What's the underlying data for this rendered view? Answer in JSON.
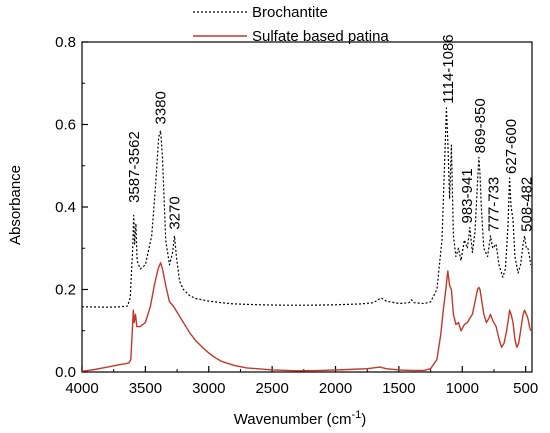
{
  "chart_data": {
    "type": "line",
    "xlabel_main": "Wavenumber (cm",
    "xlabel_sup": "-1",
    "xlabel_end": ")",
    "ylabel": "Absorbance",
    "xlim": [
      4000,
      450
    ],
    "ylim": [
      0.0,
      0.8
    ],
    "xticks": [
      4000,
      3500,
      3000,
      2500,
      2000,
      1500,
      1000,
      500
    ],
    "yticks": [
      0.0,
      0.2,
      0.4,
      0.6,
      0.8
    ],
    "ytick_labels": [
      "0.0",
      "0.2",
      "0.4",
      "0.6",
      "0.8"
    ],
    "legend": {
      "position": "top-center"
    },
    "series": [
      {
        "name": "Brochantite",
        "color": "#000000",
        "style": "dotted",
        "points": [
          [
            4000,
            0.158
          ],
          [
            3800,
            0.157
          ],
          [
            3700,
            0.158
          ],
          [
            3640,
            0.16
          ],
          [
            3620,
            0.18
          ],
          [
            3600,
            0.3
          ],
          [
            3592,
            0.38
          ],
          [
            3585,
            0.31
          ],
          [
            3575,
            0.36
          ],
          [
            3565,
            0.27
          ],
          [
            3540,
            0.25
          ],
          [
            3500,
            0.26
          ],
          [
            3450,
            0.33
          ],
          [
            3420,
            0.45
          ],
          [
            3395,
            0.57
          ],
          [
            3380,
            0.585
          ],
          [
            3365,
            0.52
          ],
          [
            3340,
            0.32
          ],
          [
            3310,
            0.26
          ],
          [
            3285,
            0.29
          ],
          [
            3270,
            0.33
          ],
          [
            3255,
            0.28
          ],
          [
            3230,
            0.22
          ],
          [
            3200,
            0.2
          ],
          [
            3150,
            0.185
          ],
          [
            3100,
            0.178
          ],
          [
            3000,
            0.172
          ],
          [
            2900,
            0.168
          ],
          [
            2800,
            0.165
          ],
          [
            2600,
            0.163
          ],
          [
            2400,
            0.162
          ],
          [
            2200,
            0.162
          ],
          [
            2000,
            0.163
          ],
          [
            1800,
            0.165
          ],
          [
            1700,
            0.168
          ],
          [
            1640,
            0.18
          ],
          [
            1600,
            0.172
          ],
          [
            1500,
            0.166
          ],
          [
            1420,
            0.168
          ],
          [
            1400,
            0.175
          ],
          [
            1380,
            0.168
          ],
          [
            1300,
            0.166
          ],
          [
            1250,
            0.17
          ],
          [
            1200,
            0.2
          ],
          [
            1160,
            0.32
          ],
          [
            1140,
            0.5
          ],
          [
            1125,
            0.64
          ],
          [
            1114,
            0.56
          ],
          [
            1100,
            0.42
          ],
          [
            1086,
            0.55
          ],
          [
            1070,
            0.33
          ],
          [
            1050,
            0.28
          ],
          [
            1030,
            0.3
          ],
          [
            1010,
            0.27
          ],
          [
            983,
            0.32
          ],
          [
            960,
            0.3
          ],
          [
            941,
            0.35
          ],
          [
            920,
            0.29
          ],
          [
            900,
            0.34
          ],
          [
            880,
            0.46
          ],
          [
            869,
            0.52
          ],
          [
            860,
            0.48
          ],
          [
            850,
            0.4
          ],
          [
            830,
            0.3
          ],
          [
            800,
            0.28
          ],
          [
            777,
            0.33
          ],
          [
            760,
            0.3
          ],
          [
            733,
            0.31
          ],
          [
            710,
            0.26
          ],
          [
            680,
            0.23
          ],
          [
            660,
            0.25
          ],
          [
            640,
            0.35
          ],
          [
            627,
            0.47
          ],
          [
            615,
            0.4
          ],
          [
            600,
            0.37
          ],
          [
            585,
            0.28
          ],
          [
            560,
            0.24
          ],
          [
            540,
            0.26
          ],
          [
            520,
            0.31
          ],
          [
            508,
            0.33
          ],
          [
            495,
            0.3
          ],
          [
            482,
            0.3
          ],
          [
            470,
            0.28
          ],
          [
            460,
            0.26
          ]
        ]
      },
      {
        "name": "Sulfate based patina",
        "color": "#c0392b",
        "style": "solid",
        "points": [
          [
            4000,
            0.002
          ],
          [
            3950,
            0.004
          ],
          [
            3900,
            0.006
          ],
          [
            3850,
            0.009
          ],
          [
            3800,
            0.012
          ],
          [
            3750,
            0.015
          ],
          [
            3700,
            0.018
          ],
          [
            3660,
            0.02
          ],
          [
            3630,
            0.022
          ],
          [
            3615,
            0.03
          ],
          [
            3605,
            0.09
          ],
          [
            3595,
            0.15
          ],
          [
            3588,
            0.12
          ],
          [
            3578,
            0.14
          ],
          [
            3568,
            0.11
          ],
          [
            3540,
            0.11
          ],
          [
            3500,
            0.12
          ],
          [
            3460,
            0.16
          ],
          [
            3430,
            0.21
          ],
          [
            3400,
            0.25
          ],
          [
            3380,
            0.265
          ],
          [
            3365,
            0.25
          ],
          [
            3340,
            0.21
          ],
          [
            3310,
            0.17
          ],
          [
            3280,
            0.16
          ],
          [
            3250,
            0.145
          ],
          [
            3200,
            0.12
          ],
          [
            3150,
            0.095
          ],
          [
            3100,
            0.075
          ],
          [
            3050,
            0.06
          ],
          [
            3000,
            0.046
          ],
          [
            2950,
            0.035
          ],
          [
            2900,
            0.026
          ],
          [
            2800,
            0.016
          ],
          [
            2700,
            0.01
          ],
          [
            2500,
            0.005
          ],
          [
            2300,
            0.003
          ],
          [
            2100,
            0.004
          ],
          [
            1900,
            0.006
          ],
          [
            1750,
            0.008
          ],
          [
            1650,
            0.012
          ],
          [
            1600,
            0.008
          ],
          [
            1500,
            0.005
          ],
          [
            1400,
            0.004
          ],
          [
            1300,
            0.004
          ],
          [
            1250,
            0.008
          ],
          [
            1200,
            0.03
          ],
          [
            1170,
            0.09
          ],
          [
            1150,
            0.15
          ],
          [
            1130,
            0.2
          ],
          [
            1114,
            0.245
          ],
          [
            1100,
            0.21
          ],
          [
            1086,
            0.2
          ],
          [
            1070,
            0.14
          ],
          [
            1050,
            0.115
          ],
          [
            1030,
            0.12
          ],
          [
            1010,
            0.1
          ],
          [
            983,
            0.115
          ],
          [
            960,
            0.12
          ],
          [
            941,
            0.13
          ],
          [
            920,
            0.14
          ],
          [
            900,
            0.17
          ],
          [
            880,
            0.2
          ],
          [
            869,
            0.205
          ],
          [
            860,
            0.2
          ],
          [
            850,
            0.18
          ],
          [
            830,
            0.14
          ],
          [
            810,
            0.12
          ],
          [
            790,
            0.13
          ],
          [
            777,
            0.14
          ],
          [
            760,
            0.125
          ],
          [
            733,
            0.11
          ],
          [
            710,
            0.08
          ],
          [
            690,
            0.06
          ],
          [
            670,
            0.07
          ],
          [
            650,
            0.1
          ],
          [
            635,
            0.13
          ],
          [
            627,
            0.15
          ],
          [
            615,
            0.14
          ],
          [
            600,
            0.12
          ],
          [
            585,
            0.08
          ],
          [
            570,
            0.06
          ],
          [
            555,
            0.07
          ],
          [
            540,
            0.1
          ],
          [
            520,
            0.14
          ],
          [
            508,
            0.15
          ],
          [
            495,
            0.14
          ],
          [
            482,
            0.13
          ],
          [
            470,
            0.11
          ],
          [
            460,
            0.1
          ]
        ]
      }
    ],
    "annotations": [
      {
        "text": "3587-3562",
        "x": 3590,
        "y": 0.41
      },
      {
        "text": "3380",
        "x": 3380,
        "y": 0.6
      },
      {
        "text": "3270",
        "x": 3270,
        "y": 0.345
      },
      {
        "text": "1114-1086",
        "x": 1114,
        "y": 0.65
      },
      {
        "text": "983-941",
        "x": 962,
        "y": 0.36
      },
      {
        "text": "869-850",
        "x": 860,
        "y": 0.53
      },
      {
        "text": "777-733",
        "x": 755,
        "y": 0.34
      },
      {
        "text": "627-600",
        "x": 614,
        "y": 0.48
      },
      {
        "text": "508-482",
        "x": 495,
        "y": 0.34
      }
    ]
  }
}
